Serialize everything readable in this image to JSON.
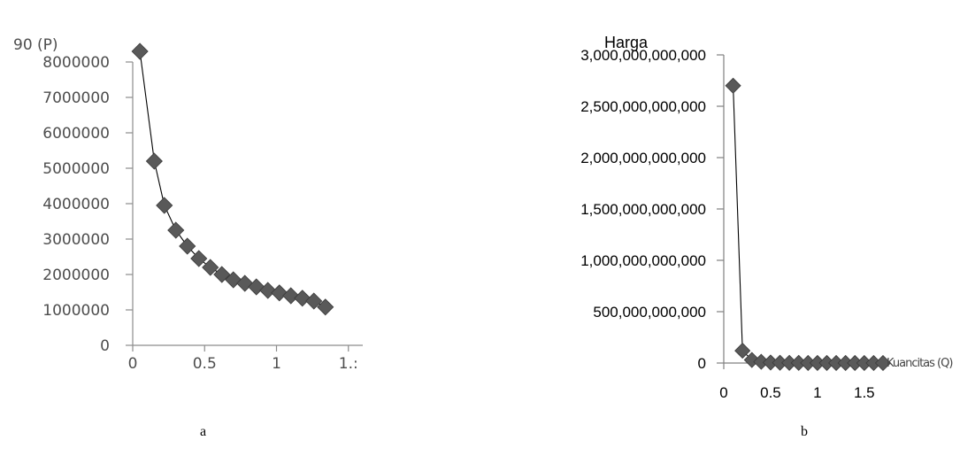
{
  "chart_data": [
    {
      "type": "scatter",
      "title": "90  (P)",
      "caption": "a",
      "xlabel": "",
      "ylabel": "",
      "xlim": [
        0,
        1.4
      ],
      "ylim": [
        0,
        8000000
      ],
      "x_ticks": [
        "0",
        "0.5",
        "1",
        "1.:"
      ],
      "x_tick_values": [
        0,
        0.5,
        1,
        1.5
      ],
      "y_ticks": [
        "0",
        "1000000",
        "2000000",
        "3000000",
        "4000000",
        "5000000",
        "6000000",
        "7000000",
        "8000000"
      ],
      "y_tick_values": [
        0,
        1000000,
        2000000,
        3000000,
        4000000,
        5000000,
        6000000,
        7000000,
        8000000
      ],
      "grid": false,
      "legend": "none",
      "trendline": "power",
      "series": [
        {
          "x": [
            0.05,
            0.15,
            0.22,
            0.3,
            0.38,
            0.46,
            0.54,
            0.62,
            0.7,
            0.78,
            0.86,
            0.94,
            1.02,
            1.1,
            1.18,
            1.26,
            1.34
          ],
          "values": [
            8300000,
            5200000,
            3950000,
            3250000,
            2800000,
            2450000,
            2200000,
            2000000,
            1850000,
            1750000,
            1650000,
            1550000,
            1480000,
            1400000,
            1330000,
            1250000,
            1080000
          ]
        }
      ]
    },
    {
      "type": "scatter",
      "title": "Harga",
      "caption": "b",
      "xlabel": "Kuancitas (Q)",
      "ylabel": "",
      "xlim": [
        0,
        1.7
      ],
      "ylim": [
        0,
        3000000000000
      ],
      "x_ticks": [
        "0",
        "0.5",
        "1",
        "1.5"
      ],
      "x_tick_values": [
        0,
        0.5,
        1,
        1.5
      ],
      "y_ticks": [
        "0",
        "500,000,000,000",
        "1,000,000,000,000",
        "1,500,000,000,000",
        "2,000,000,000,000",
        "2,500,000,000,000",
        "3,000,000,000,000"
      ],
      "y_tick_values": [
        0,
        500000000000,
        1000000000000,
        1500000000000,
        2000000000000,
        2500000000000,
        3000000000000
      ],
      "grid": false,
      "legend": "none",
      "trendline": "power",
      "series": [
        {
          "x": [
            0.1,
            0.2,
            0.3,
            0.4,
            0.5,
            0.6,
            0.7,
            0.8,
            0.9,
            1.0,
            1.1,
            1.2,
            1.3,
            1.4,
            1.5,
            1.6,
            1.7
          ],
          "values": [
            2700000000000,
            120000000000,
            30000000000,
            12000000000,
            5000000000,
            3000000000,
            2000000000,
            1500000000,
            1000000000,
            800000000,
            600000000,
            500000000,
            400000000,
            300000000,
            250000000,
            200000000,
            150000000
          ]
        }
      ]
    }
  ]
}
